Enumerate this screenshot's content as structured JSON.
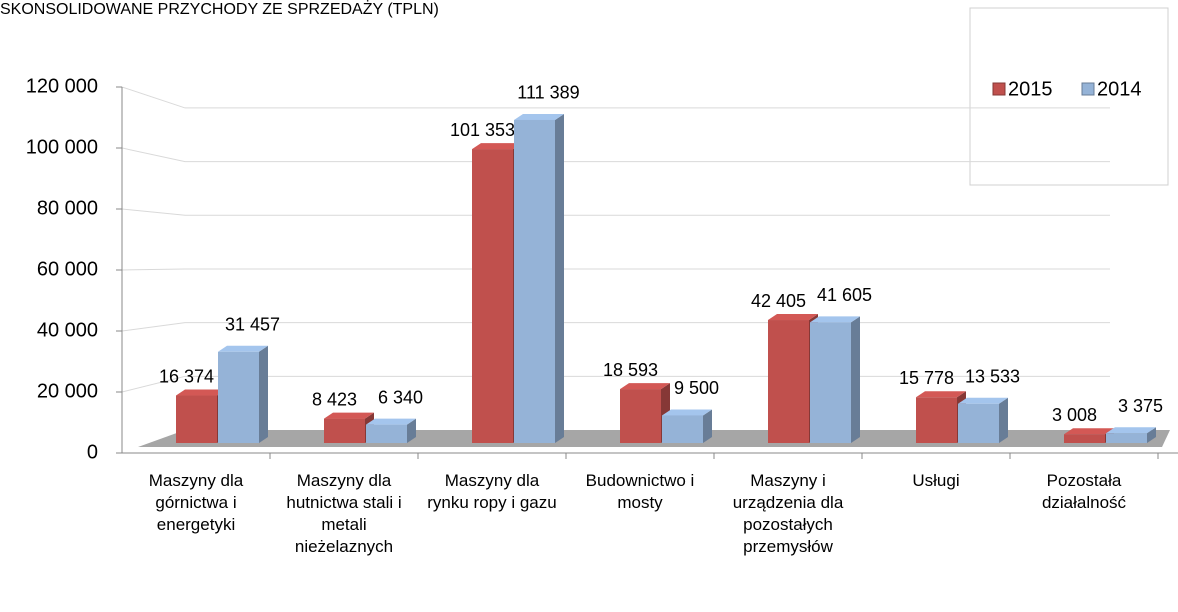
{
  "chart_data": {
    "type": "bar",
    "title": "SKONSOLIDOWANE PRZYCHODY ZE SPRZEDAŻY (TPLN)",
    "categories": [
      "Maszyny dla górnictwa i energetyki",
      "Maszyny dla hutnictwa stali i metali nieżelaznych",
      "Maszyny dla rynku ropy i gazu",
      "Budownictwo i mosty",
      "Maszyny i urządzenia dla pozostałych przemysłów",
      "Usługi",
      "Pozostała działalność"
    ],
    "series": [
      {
        "name": "2015",
        "color": "#c0504d",
        "values": [
          16374,
          8423,
          101353,
          18593,
          42405,
          15778,
          3008
        ],
        "value_labels": [
          "16 374",
          "8 423",
          "101 353",
          "18 593",
          "42 405",
          "15 778",
          "3 008"
        ]
      },
      {
        "name": "2014",
        "color": "#95b3d7",
        "values": [
          31457,
          6340,
          111389,
          9500,
          41605,
          13533,
          3375
        ],
        "value_labels": [
          "31 457",
          "6 340",
          "111 389",
          "9 500",
          "41 605",
          "13 533",
          "3 375"
        ]
      }
    ],
    "ylim": [
      0,
      120000
    ],
    "yticks": [
      0,
      {
        "value": 20000,
        "label": "20 000"
      },
      {
        "value": 40000,
        "label": "40 000"
      },
      {
        "value": 60000,
        "label": "60 000"
      },
      {
        "value": 80000,
        "label": "80 000"
      },
      {
        "value": 100000,
        "label": "100 000"
      },
      {
        "value": 120000,
        "label": "120 000"
      }
    ],
    "grid": true,
    "legend": "top-right"
  }
}
